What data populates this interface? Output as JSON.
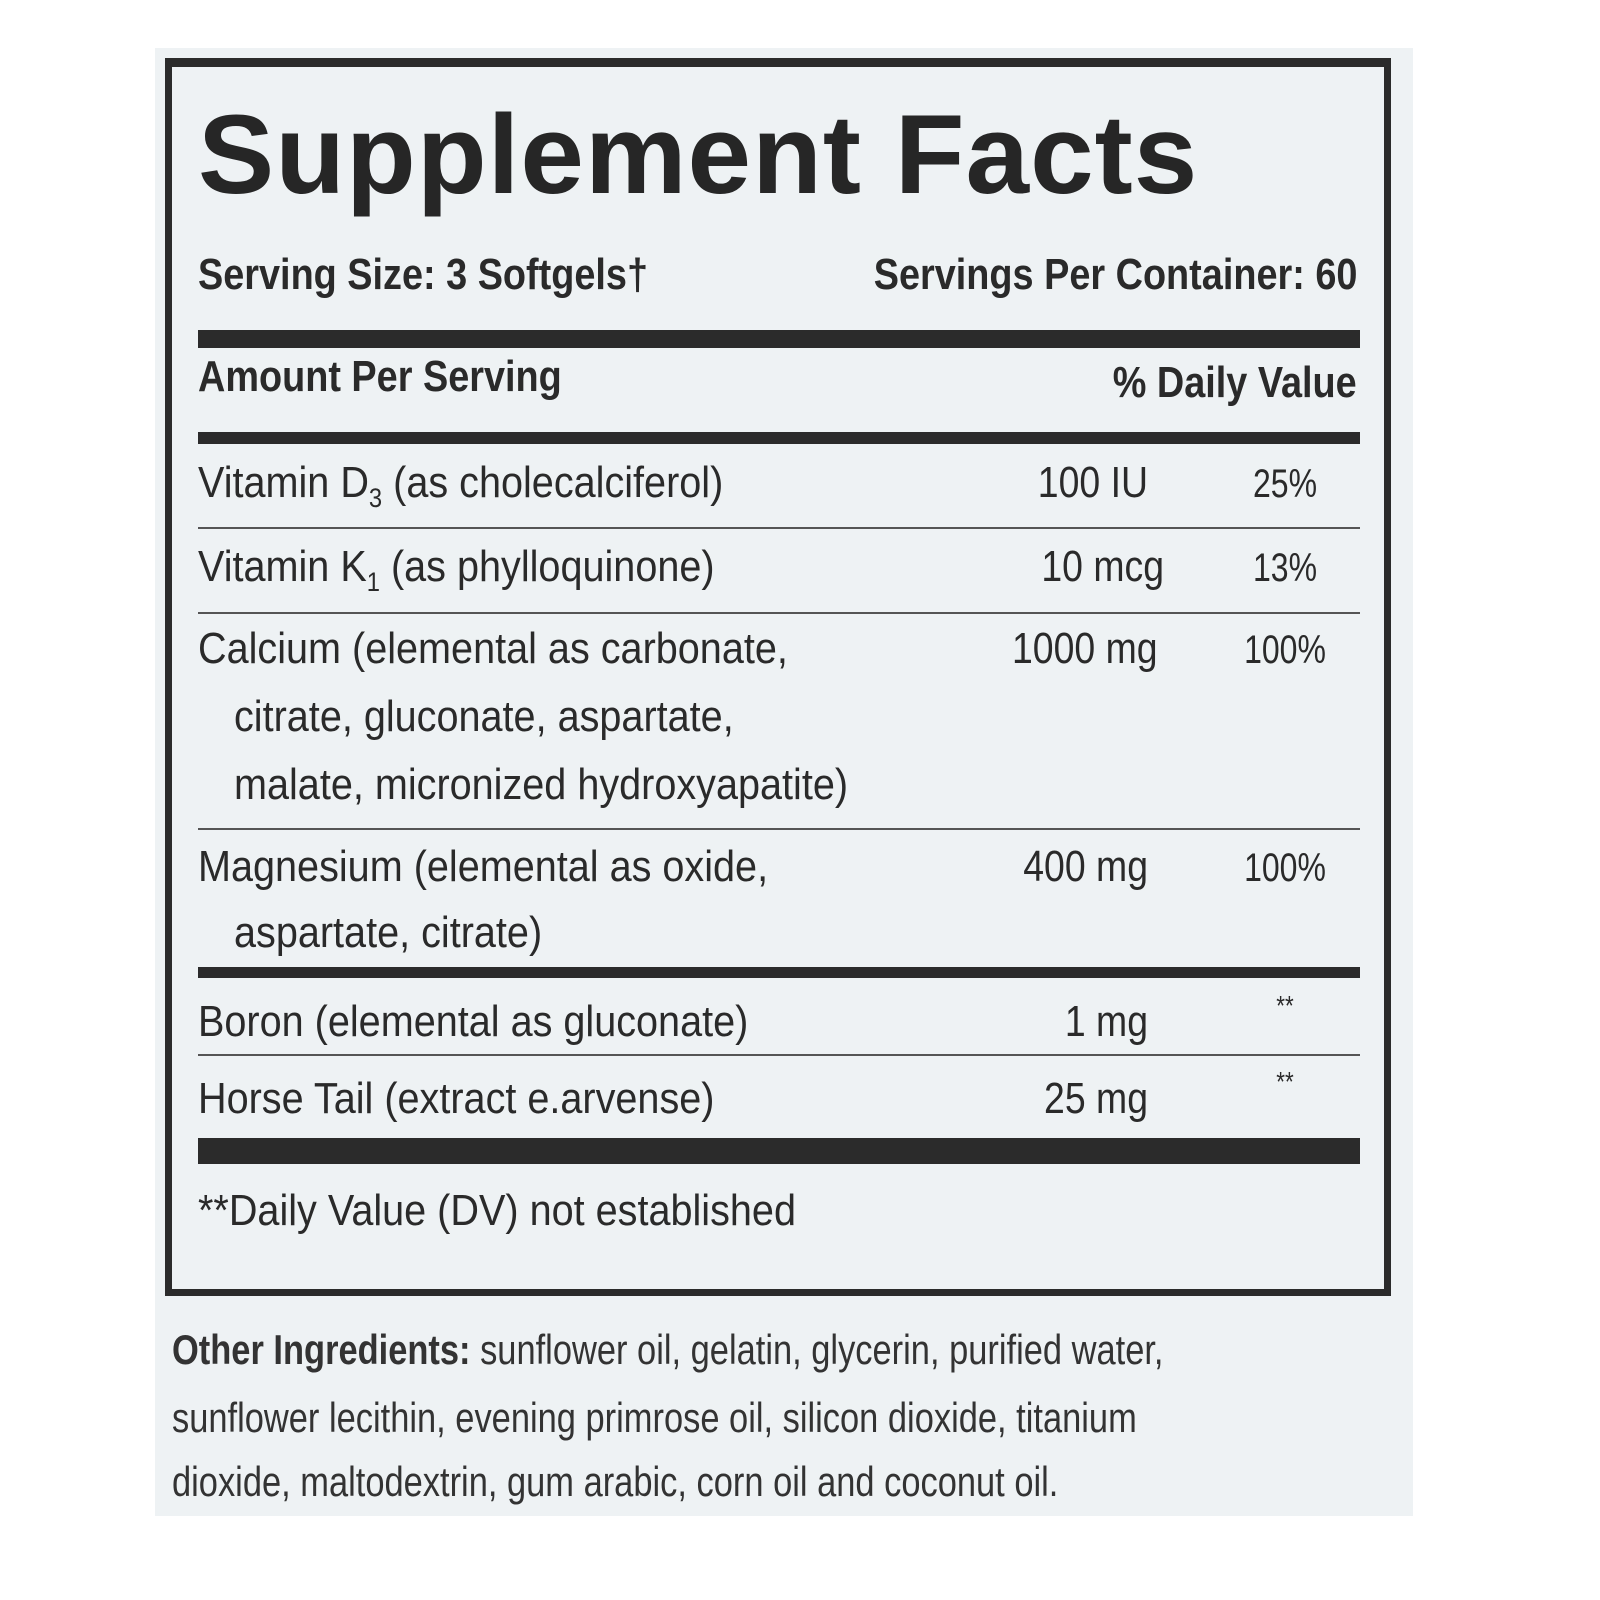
{
  "title": "Supplement Facts",
  "serving_size": "Serving Size: 3 Softgels†",
  "servings_per_container": "Servings Per Container: 60",
  "amount_per_serving": "Amount Per Serving",
  "daily_value_header": "% Daily Value",
  "nutrients": [
    {
      "name": "Vitamin D",
      "sub": "3",
      "rest": " (as cholecalciferol)",
      "amount": "100 IU",
      "dv": "25%"
    },
    {
      "name": "Vitamin K",
      "sub": "1",
      "rest": " (as phylloquinone)",
      "amount": "10 mcg",
      "dv": "13%"
    },
    {
      "lines": [
        "Calcium (elemental as carbonate,",
        "citrate, gluconate, aspartate,",
        "malate, micronized hydroxyapatite)"
      ],
      "amount": "1000 mg",
      "dv": "100%"
    },
    {
      "lines": [
        "Magnesium (elemental as oxide,",
        "aspartate, citrate)"
      ],
      "amount": "400 mg",
      "dv": "100%"
    },
    {
      "name": "Boron (elemental as gluconate)",
      "amount": "1 mg",
      "dv": "**"
    },
    {
      "name": "Horse Tail (extract e.arvense)",
      "amount": "25 mg",
      "dv": "**"
    }
  ],
  "footnote": "**Daily Value (DV) not established",
  "other_ingredients": {
    "label": "Other Ingredients:",
    "lines": [
      " sunflower oil, gelatin, glycerin, purified water,",
      "sunflower lecithin, evening primrose oil, silicon dioxide, titanium",
      "dioxide, maltodextrin, gum arabic, corn oil and coconut oil."
    ]
  }
}
